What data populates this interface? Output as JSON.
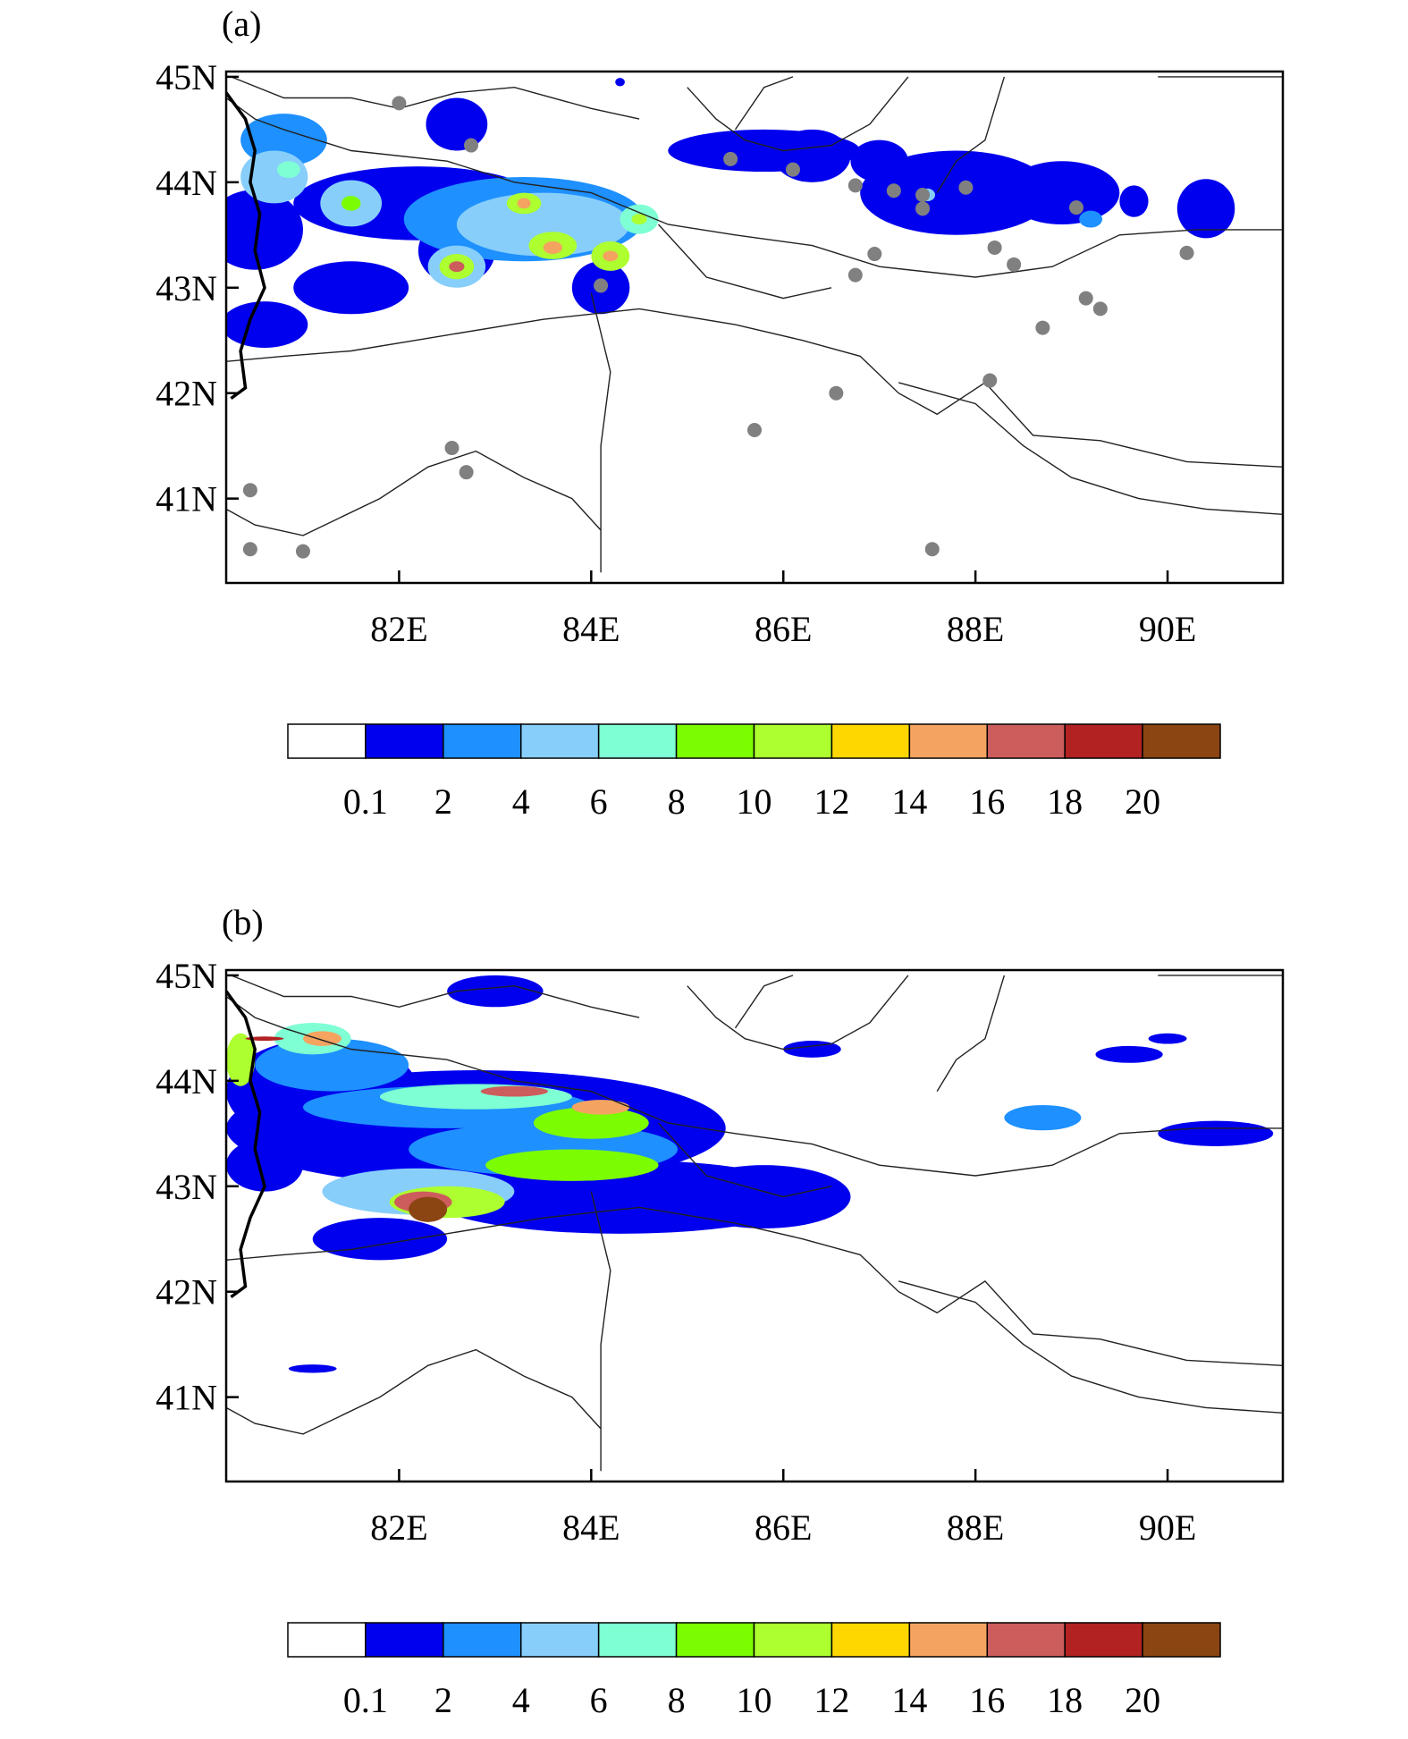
{
  "panels": [
    {
      "id": "a",
      "label": "(a)",
      "lat_ticks": [
        {
          "value": 45,
          "label": "45N"
        },
        {
          "value": 44,
          "label": "44N"
        },
        {
          "value": 43,
          "label": "43N"
        },
        {
          "value": 42,
          "label": "42N"
        },
        {
          "value": 41,
          "label": "41N"
        }
      ],
      "lon_ticks": [
        {
          "value": 82,
          "label": "82E"
        },
        {
          "value": 84,
          "label": "84E"
        },
        {
          "value": 86,
          "label": "86E"
        },
        {
          "value": 88,
          "label": "88E"
        },
        {
          "value": 90,
          "label": "90E"
        }
      ],
      "lon_range": [
        80.2,
        91.2
      ],
      "lat_range": [
        40.2,
        45.05
      ],
      "stations": [
        [
          82.0,
          44.75
        ],
        [
          82.75,
          44.35
        ],
        [
          85.45,
          44.22
        ],
        [
          86.1,
          44.12
        ],
        [
          86.75,
          43.97
        ],
        [
          87.15,
          43.92
        ],
        [
          87.45,
          43.88
        ],
        [
          87.45,
          43.75
        ],
        [
          87.9,
          43.95
        ],
        [
          89.05,
          43.76
        ],
        [
          88.2,
          43.38
        ],
        [
          88.4,
          43.22
        ],
        [
          86.95,
          43.32
        ],
        [
          86.75,
          43.12
        ],
        [
          84.1,
          43.02
        ],
        [
          90.2,
          43.33
        ],
        [
          89.15,
          42.9
        ],
        [
          89.3,
          42.8
        ],
        [
          88.7,
          42.62
        ],
        [
          88.15,
          42.12
        ],
        [
          86.55,
          42.0
        ],
        [
          85.7,
          41.65
        ],
        [
          82.55,
          41.48
        ],
        [
          82.7,
          41.25
        ],
        [
          80.45,
          41.08
        ],
        [
          80.45,
          40.52
        ],
        [
          81.0,
          40.5
        ],
        [
          87.55,
          40.52
        ]
      ],
      "blobs": [
        {
          "lon": 80.8,
          "lat": 44.4,
          "rx": 0.45,
          "ry": 0.25,
          "level": 2
        },
        {
          "lon": 80.7,
          "lat": 44.05,
          "rx": 0.35,
          "ry": 0.25,
          "level": 3
        },
        {
          "lon": 80.85,
          "lat": 44.12,
          "rx": 0.12,
          "ry": 0.08,
          "level": 4
        },
        {
          "lon": 80.5,
          "lat": 43.55,
          "rx": 0.5,
          "ry": 0.38,
          "level": 1
        },
        {
          "lon": 80.6,
          "lat": 42.65,
          "rx": 0.45,
          "ry": 0.22,
          "level": 1
        },
        {
          "lon": 81.5,
          "lat": 43.0,
          "rx": 0.6,
          "ry": 0.25,
          "level": 1
        },
        {
          "lon": 82.6,
          "lat": 44.55,
          "rx": 0.32,
          "ry": 0.25,
          "level": 1
        },
        {
          "lon": 82.2,
          "lat": 43.8,
          "rx": 1.3,
          "ry": 0.35,
          "level": 1
        },
        {
          "lon": 81.5,
          "lat": 43.8,
          "rx": 0.32,
          "ry": 0.22,
          "level": 3
        },
        {
          "lon": 81.5,
          "lat": 43.8,
          "rx": 0.1,
          "ry": 0.07,
          "level": 5
        },
        {
          "lon": 82.6,
          "lat": 43.35,
          "rx": 0.4,
          "ry": 0.32,
          "level": 1
        },
        {
          "lon": 82.6,
          "lat": 43.2,
          "rx": 0.3,
          "ry": 0.2,
          "level": 3
        },
        {
          "lon": 82.6,
          "lat": 43.2,
          "rx": 0.18,
          "ry": 0.12,
          "level": 6
        },
        {
          "lon": 82.6,
          "lat": 43.2,
          "rx": 0.08,
          "ry": 0.05,
          "level": 9
        },
        {
          "lon": 83.3,
          "lat": 43.65,
          "rx": 1.25,
          "ry": 0.4,
          "level": 2
        },
        {
          "lon": 83.5,
          "lat": 43.6,
          "rx": 0.9,
          "ry": 0.3,
          "level": 3
        },
        {
          "lon": 83.3,
          "lat": 43.8,
          "rx": 0.18,
          "ry": 0.1,
          "level": 6
        },
        {
          "lon": 83.3,
          "lat": 43.8,
          "rx": 0.07,
          "ry": 0.05,
          "level": 8
        },
        {
          "lon": 83.6,
          "lat": 43.4,
          "rx": 0.25,
          "ry": 0.13,
          "level": 6
        },
        {
          "lon": 83.6,
          "lat": 43.38,
          "rx": 0.1,
          "ry": 0.06,
          "level": 8
        },
        {
          "lon": 84.2,
          "lat": 43.3,
          "rx": 0.2,
          "ry": 0.14,
          "level": 6
        },
        {
          "lon": 84.2,
          "lat": 43.3,
          "rx": 0.08,
          "ry": 0.05,
          "level": 8
        },
        {
          "lon": 84.5,
          "lat": 43.65,
          "rx": 0.2,
          "ry": 0.14,
          "level": 4
        },
        {
          "lon": 84.5,
          "lat": 43.65,
          "rx": 0.08,
          "ry": 0.05,
          "level": 6
        },
        {
          "lon": 84.1,
          "lat": 43.0,
          "rx": 0.3,
          "ry": 0.25,
          "level": 1
        },
        {
          "lon": 85.8,
          "lat": 44.3,
          "rx": 1.0,
          "ry": 0.2,
          "level": 1
        },
        {
          "lon": 86.3,
          "lat": 44.25,
          "rx": 0.4,
          "ry": 0.25,
          "level": 1
        },
        {
          "lon": 87.8,
          "lat": 43.9,
          "rx": 1.0,
          "ry": 0.4,
          "level": 1
        },
        {
          "lon": 87.0,
          "lat": 44.2,
          "rx": 0.3,
          "ry": 0.2,
          "level": 1
        },
        {
          "lon": 88.9,
          "lat": 43.9,
          "rx": 0.6,
          "ry": 0.3,
          "level": 1
        },
        {
          "lon": 87.5,
          "lat": 43.88,
          "rx": 0.08,
          "ry": 0.06,
          "level": 3
        },
        {
          "lon": 89.2,
          "lat": 43.65,
          "rx": 0.12,
          "ry": 0.08,
          "level": 2
        },
        {
          "lon": 89.65,
          "lat": 43.82,
          "rx": 0.15,
          "ry": 0.15,
          "level": 1
        },
        {
          "lon": 90.4,
          "lat": 43.75,
          "rx": 0.3,
          "ry": 0.28,
          "level": 1
        },
        {
          "lon": 84.3,
          "lat": 44.95,
          "rx": 0.05,
          "ry": 0.04,
          "level": 1
        }
      ]
    },
    {
      "id": "b",
      "label": "(b)",
      "lat_ticks": [
        {
          "value": 45,
          "label": "45N"
        },
        {
          "value": 44,
          "label": "44N"
        },
        {
          "value": 43,
          "label": "43N"
        },
        {
          "value": 42,
          "label": "42N"
        },
        {
          "value": 41,
          "label": "41N"
        }
      ],
      "lon_ticks": [
        {
          "value": 82,
          "label": "82E"
        },
        {
          "value": 84,
          "label": "84E"
        },
        {
          "value": 86,
          "label": "86E"
        },
        {
          "value": 88,
          "label": "88E"
        },
        {
          "value": 90,
          "label": "90E"
        }
      ],
      "lon_range": [
        80.2,
        91.2
      ],
      "lat_range": [
        40.2,
        45.05
      ],
      "stations": [],
      "blobs": [
        {
          "lon": 82.8,
          "lat": 43.55,
          "rx": 2.6,
          "ry": 0.55,
          "level": 1
        },
        {
          "lon": 81.2,
          "lat": 43.9,
          "rx": 1.0,
          "ry": 0.5,
          "level": 1
        },
        {
          "lon": 84.3,
          "lat": 42.9,
          "rx": 2.0,
          "ry": 0.35,
          "level": 1
        },
        {
          "lon": 85.8,
          "lat": 42.9,
          "rx": 0.9,
          "ry": 0.3,
          "level": 1
        },
        {
          "lon": 81.8,
          "lat": 42.5,
          "rx": 0.7,
          "ry": 0.2,
          "level": 1
        },
        {
          "lon": 81.3,
          "lat": 44.15,
          "rx": 0.8,
          "ry": 0.25,
          "level": 2
        },
        {
          "lon": 82.5,
          "lat": 43.75,
          "rx": 1.5,
          "ry": 0.2,
          "level": 2
        },
        {
          "lon": 83.5,
          "lat": 43.35,
          "rx": 1.4,
          "ry": 0.25,
          "level": 2
        },
        {
          "lon": 82.2,
          "lat": 42.95,
          "rx": 1.0,
          "ry": 0.22,
          "level": 3
        },
        {
          "lon": 81.1,
          "lat": 44.4,
          "rx": 0.4,
          "ry": 0.15,
          "level": 4
        },
        {
          "lon": 82.8,
          "lat": 43.85,
          "rx": 1.0,
          "ry": 0.12,
          "level": 4
        },
        {
          "lon": 84.0,
          "lat": 43.6,
          "rx": 0.6,
          "ry": 0.15,
          "level": 5
        },
        {
          "lon": 83.8,
          "lat": 43.2,
          "rx": 0.9,
          "ry": 0.15,
          "level": 5
        },
        {
          "lon": 82.5,
          "lat": 42.85,
          "rx": 0.6,
          "ry": 0.15,
          "level": 6
        },
        {
          "lon": 81.2,
          "lat": 44.4,
          "rx": 0.2,
          "ry": 0.07,
          "level": 8
        },
        {
          "lon": 84.1,
          "lat": 43.75,
          "rx": 0.3,
          "ry": 0.07,
          "level": 8
        },
        {
          "lon": 83.2,
          "lat": 43.9,
          "rx": 0.35,
          "ry": 0.05,
          "level": 9
        },
        {
          "lon": 82.25,
          "lat": 42.85,
          "rx": 0.3,
          "ry": 0.1,
          "level": 9
        },
        {
          "lon": 82.3,
          "lat": 42.78,
          "rx": 0.2,
          "ry": 0.12,
          "level": 11
        },
        {
          "lon": 80.35,
          "lat": 44.2,
          "rx": 0.15,
          "ry": 0.25,
          "level": 6
        },
        {
          "lon": 80.6,
          "lat": 44.4,
          "rx": 0.2,
          "ry": 0.02,
          "level": 10
        },
        {
          "lon": 80.6,
          "lat": 43.2,
          "rx": 0.4,
          "ry": 0.25,
          "level": 1
        },
        {
          "lon": 88.7,
          "lat": 43.65,
          "rx": 0.4,
          "ry": 0.12,
          "level": 2
        },
        {
          "lon": 90.5,
          "lat": 43.5,
          "rx": 0.6,
          "ry": 0.12,
          "level": 1
        },
        {
          "lon": 89.6,
          "lat": 44.25,
          "rx": 0.35,
          "ry": 0.08,
          "level": 1
        },
        {
          "lon": 90.0,
          "lat": 44.4,
          "rx": 0.2,
          "ry": 0.05,
          "level": 1
        },
        {
          "lon": 81.1,
          "lat": 41.27,
          "rx": 0.25,
          "ry": 0.04,
          "level": 1
        },
        {
          "lon": 83.0,
          "lat": 44.85,
          "rx": 0.5,
          "ry": 0.15,
          "level": 1
        },
        {
          "lon": 86.3,
          "lat": 44.3,
          "rx": 0.3,
          "ry": 0.08,
          "level": 1
        }
      ]
    }
  ],
  "colorbar": {
    "colors": [
      "#ffffff",
      "#0000ee",
      "#1e90ff",
      "#87cefa",
      "#7fffd4",
      "#7cfc00",
      "#adff2f",
      "#ffd700",
      "#f4a460",
      "#cd5c5c",
      "#b22222",
      "#8b4513"
    ],
    "labels": [
      "0.1",
      "2",
      "4",
      "6",
      "8",
      "10",
      "12",
      "14",
      "16",
      "18",
      "20"
    ]
  },
  "map_lines": [
    [
      [
        80.2,
        44.8
      ],
      [
        80.5,
        44.6
      ],
      [
        80.8,
        44.5
      ],
      [
        81.5,
        44.3
      ],
      [
        82.5,
        44.2
      ],
      [
        83.2,
        44.0
      ],
      [
        84.0,
        43.9
      ],
      [
        84.8,
        43.6
      ],
      [
        85.5,
        43.5
      ],
      [
        86.3,
        43.4
      ],
      [
        87.0,
        43.2
      ],
      [
        88.0,
        43.1
      ],
      [
        88.8,
        43.2
      ],
      [
        89.5,
        43.5
      ],
      [
        90.3,
        43.55
      ],
      [
        91.2,
        43.55
      ]
    ],
    [
      [
        80.2,
        42.3
      ],
      [
        80.8,
        42.35
      ],
      [
        81.5,
        42.4
      ],
      [
        82.5,
        42.55
      ],
      [
        83.5,
        42.7
      ],
      [
        84.5,
        42.8
      ],
      [
        85.5,
        42.65
      ],
      [
        86.2,
        42.5
      ],
      [
        86.8,
        42.35
      ],
      [
        87.2,
        42.0
      ],
      [
        87.6,
        41.8
      ],
      [
        88.1,
        42.1
      ],
      [
        88.6,
        41.6
      ],
      [
        89.3,
        41.55
      ],
      [
        90.2,
        41.35
      ],
      [
        91.2,
        41.3
      ]
    ],
    [
      [
        80.2,
        40.9
      ],
      [
        80.5,
        40.75
      ],
      [
        81.0,
        40.65
      ],
      [
        81.8,
        41.0
      ],
      [
        82.3,
        41.3
      ],
      [
        82.8,
        41.45
      ],
      [
        83.3,
        41.2
      ],
      [
        83.8,
        41.0
      ],
      [
        84.1,
        40.7
      ]
    ],
    [
      [
        84.0,
        42.95
      ],
      [
        84.2,
        42.2
      ],
      [
        84.1,
        41.5
      ],
      [
        84.1,
        40.3
      ]
    ],
    [
      [
        80.25,
        45.0
      ],
      [
        80.8,
        44.8
      ],
      [
        81.5,
        44.8
      ],
      [
        82.0,
        44.7
      ],
      [
        82.6,
        44.85
      ],
      [
        83.2,
        44.9
      ],
      [
        84.0,
        44.7
      ],
      [
        84.5,
        44.6
      ]
    ],
    [
      [
        85.0,
        44.9
      ],
      [
        85.3,
        44.6
      ],
      [
        85.6,
        44.4
      ],
      [
        86.0,
        44.3
      ],
      [
        86.5,
        44.35
      ],
      [
        86.9,
        44.55
      ],
      [
        87.3,
        45.0
      ]
    ],
    [
      [
        88.3,
        45.0
      ],
      [
        88.1,
        44.4
      ],
      [
        87.8,
        44.2
      ],
      [
        87.6,
        43.9
      ]
    ],
    [
      [
        85.5,
        44.5
      ],
      [
        85.8,
        44.9
      ],
      [
        86.1,
        45.0
      ]
    ],
    [
      [
        89.9,
        45.0
      ],
      [
        90.5,
        45.0
      ],
      [
        91.2,
        45.0
      ]
    ],
    [
      [
        84.7,
        43.6
      ],
      [
        85.2,
        43.1
      ],
      [
        86.0,
        42.9
      ],
      [
        86.5,
        43.0
      ]
    ],
    [
      [
        87.2,
        42.1
      ],
      [
        88.0,
        41.9
      ],
      [
        88.5,
        41.5
      ],
      [
        89.0,
        41.2
      ],
      [
        89.7,
        41.0
      ],
      [
        90.4,
        40.9
      ],
      [
        91.2,
        40.85
      ]
    ]
  ],
  "border_line": [
    [
      80.2,
      44.85
    ],
    [
      80.4,
      44.6
    ],
    [
      80.5,
      44.3
    ],
    [
      80.45,
      44.0
    ],
    [
      80.55,
      43.7
    ],
    [
      80.5,
      43.35
    ],
    [
      80.6,
      43.0
    ],
    [
      80.45,
      42.7
    ],
    [
      80.35,
      42.4
    ],
    [
      80.4,
      42.05
    ],
    [
      80.25,
      41.95
    ]
  ]
}
